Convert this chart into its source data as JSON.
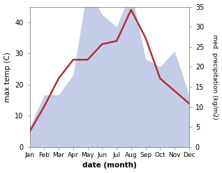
{
  "months": [
    "Jan",
    "Feb",
    "Mar",
    "Apr",
    "May",
    "Jun",
    "Jul",
    "Aug",
    "Sep",
    "Oct",
    "Nov",
    "Dec"
  ],
  "temp": [
    5,
    13,
    22,
    28,
    28,
    33,
    34,
    44,
    35,
    22,
    18,
    14
  ],
  "precip": [
    5,
    13,
    13,
    18,
    40,
    33,
    30,
    39,
    22,
    20,
    24,
    13
  ],
  "temp_color": "#b03030",
  "precip_fill_color": "#c5cce8",
  "ylabel_left": "max temp (C)",
  "ylabel_right": "med. precipitation (kg/m2)",
  "xlabel": "date (month)",
  "ylim_left": [
    0,
    45
  ],
  "ylim_right": [
    0,
    35
  ],
  "yticks_left": [
    0,
    10,
    20,
    30,
    40
  ],
  "yticks_right": [
    0,
    5,
    10,
    15,
    20,
    25,
    30,
    35
  ],
  "temp_linewidth": 1.8,
  "figsize": [
    3.18,
    2.47
  ],
  "dpi": 100
}
